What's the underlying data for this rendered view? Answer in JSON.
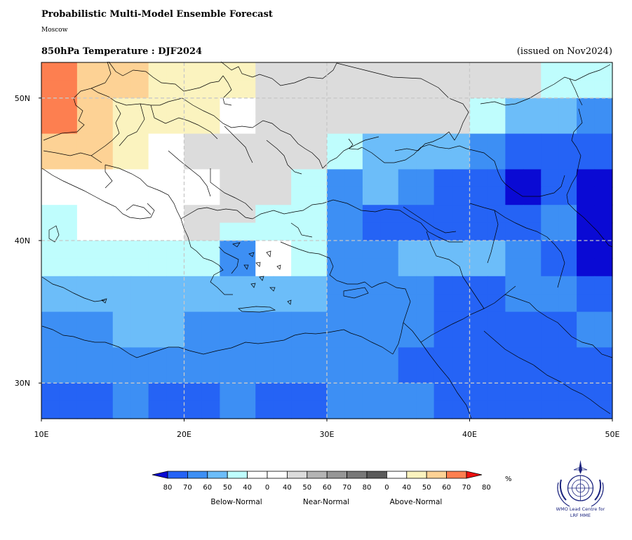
{
  "header": {
    "title": "Probabilistic Multi-Model Ensemble Forecast",
    "subtitle": "Moscow",
    "variable_label": "850hPa Temperature : DJF2024",
    "issued_label": "(issued on Nov2024)"
  },
  "map": {
    "lon_range": [
      10,
      50
    ],
    "lat_range": [
      27.5,
      52.5
    ],
    "cell_size_deg": 2.5,
    "x_ticks": [
      "10E",
      "20E",
      "30E",
      "40E",
      "50E"
    ],
    "y_ticks": [
      "30N",
      "40N",
      "50N"
    ],
    "gridlines": "dashed",
    "category_colors": {
      "B80": "#0a0ad4",
      "B70": "#2563f5",
      "B60": "#3d8ff4",
      "B50": "#6cbdf9",
      "B40": "#bffdfd",
      "W": "#ffffff",
      "N40": "#dcdcdc",
      "A40": "#fbf3bf",
      "A50": "#fdd295",
      "A60": "#fd7f50"
    },
    "grid_rows_north_to_south": [
      [
        "A60",
        "A60",
        "A50",
        "A50",
        "A50",
        "A50",
        "A40",
        "A40",
        "A40",
        "A40",
        "A40",
        "A40",
        "N40",
        "N40",
        "N40",
        "N40",
        "N40",
        "N40",
        "N40",
        "N40",
        "N40",
        "N40",
        "N40",
        "N40",
        "N40",
        "N40",
        "N40",
        "N40",
        "B40",
        "B40",
        "B40",
        "B40"
      ],
      [
        "A60",
        "A60",
        "A50",
        "A50",
        "A50",
        "A50",
        "A40",
        "A40",
        "A40",
        "A40",
        "A40",
        "A40",
        "N40",
        "N40",
        "N40",
        "N40",
        "N40",
        "N40",
        "N40",
        "N40",
        "N40",
        "N40",
        "N40",
        "N40",
        "N40",
        "N40",
        "N40",
        "N40",
        "B40",
        "B40",
        "B40",
        "B40"
      ],
      [
        "A60",
        "A60",
        "A50",
        "A50",
        "A40",
        "A40",
        "A40",
        "A40",
        "A40",
        "A40",
        "W",
        "W",
        "N40",
        "N40",
        "N40",
        "N40",
        "N40",
        "N40",
        "N40",
        "N40",
        "N40",
        "N40",
        "N40",
        "N40",
        "B40",
        "B40",
        "B50",
        "B50",
        "B50",
        "B50",
        "B60",
        "B60"
      ],
      [
        "A60",
        "A60",
        "A50",
        "A50",
        "A40",
        "A40",
        "A40",
        "A40",
        "A40",
        "A40",
        "W",
        "W",
        "N40",
        "N40",
        "N40",
        "N40",
        "N40",
        "N40",
        "N40",
        "N40",
        "N40",
        "N40",
        "N40",
        "N40",
        "B40",
        "B40",
        "B50",
        "B50",
        "B50",
        "B50",
        "B60",
        "B60"
      ],
      [
        "A50",
        "A50",
        "A50",
        "A50",
        "A40",
        "A40",
        "W",
        "W",
        "N40",
        "N40",
        "N40",
        "N40",
        "N40",
        "N40",
        "N40",
        "N40",
        "B40",
        "B40",
        "B50",
        "B50",
        "B50",
        "B50",
        "B50",
        "B50",
        "B60",
        "B60",
        "B70",
        "B70",
        "B70",
        "B70",
        "B70",
        "B70"
      ],
      [
        "A50",
        "A50",
        "A50",
        "A50",
        "A40",
        "A40",
        "W",
        "W",
        "N40",
        "N40",
        "N40",
        "N40",
        "N40",
        "N40",
        "N40",
        "N40",
        "B40",
        "B40",
        "B50",
        "B50",
        "B50",
        "B50",
        "B50",
        "B50",
        "B60",
        "B60",
        "B70",
        "B70",
        "B70",
        "B70",
        "B70",
        "B70"
      ],
      [
        "W",
        "W",
        "W",
        "W",
        "W",
        "W",
        "W",
        "W",
        "W",
        "W",
        "N40",
        "N40",
        "N40",
        "N40",
        "B40",
        "B40",
        "B60",
        "B60",
        "B50",
        "B50",
        "B60",
        "B60",
        "B70",
        "B70",
        "B70",
        "B70",
        "B80",
        "B80",
        "B70",
        "B70",
        "B80",
        "B80"
      ],
      [
        "W",
        "W",
        "W",
        "W",
        "W",
        "W",
        "W",
        "W",
        "W",
        "W",
        "N40",
        "N40",
        "N40",
        "N40",
        "B40",
        "B40",
        "B60",
        "B60",
        "B50",
        "B50",
        "B60",
        "B60",
        "B70",
        "B70",
        "B70",
        "B70",
        "B80",
        "B80",
        "B70",
        "B70",
        "B80",
        "B80"
      ],
      [
        "B40",
        "B40",
        "W",
        "W",
        "W",
        "W",
        "W",
        "W",
        "N40",
        "N40",
        "N40",
        "N40",
        "B40",
        "B40",
        "B40",
        "B40",
        "B60",
        "B60",
        "B70",
        "B70",
        "B70",
        "B70",
        "B70",
        "B70",
        "B70",
        "B70",
        "B70",
        "B70",
        "B60",
        "B60",
        "B80",
        "B80"
      ],
      [
        "B40",
        "B40",
        "W",
        "W",
        "W",
        "W",
        "W",
        "W",
        "N40",
        "N40",
        "B40",
        "B40",
        "B40",
        "B40",
        "B40",
        "B40",
        "B60",
        "B60",
        "B70",
        "B70",
        "B70",
        "B70",
        "B70",
        "B70",
        "B70",
        "B70",
        "B70",
        "B70",
        "B60",
        "B60",
        "B80",
        "B80"
      ],
      [
        "B40",
        "B40",
        "B40",
        "B40",
        "B40",
        "B40",
        "B40",
        "B40",
        "B40",
        "B40",
        "B60",
        "B60",
        "W",
        "W",
        "B40",
        "B40",
        "B60",
        "B60",
        "B60",
        "B60",
        "B50",
        "B50",
        "B50",
        "B50",
        "B50",
        "B50",
        "B60",
        "B60",
        "B70",
        "B70",
        "B80",
        "B80"
      ],
      [
        "B40",
        "B40",
        "B40",
        "B40",
        "B40",
        "B40",
        "B40",
        "B40",
        "B40",
        "B40",
        "B60",
        "B60",
        "W",
        "W",
        "B40",
        "B40",
        "B60",
        "B60",
        "B60",
        "B60",
        "B50",
        "B50",
        "B50",
        "B50",
        "B50",
        "B50",
        "B60",
        "B60",
        "B70",
        "B70",
        "B80",
        "B80"
      ],
      [
        "B50",
        "B50",
        "B50",
        "B50",
        "B50",
        "B50",
        "B50",
        "B50",
        "B50",
        "B50",
        "B50",
        "B50",
        "B50",
        "B50",
        "B50",
        "B50",
        "B60",
        "B60",
        "B60",
        "B60",
        "B60",
        "B60",
        "B70",
        "B70",
        "B70",
        "B70",
        "B60",
        "B60",
        "B60",
        "B60",
        "B70",
        "B70"
      ],
      [
        "B50",
        "B50",
        "B50",
        "B50",
        "B50",
        "B50",
        "B50",
        "B50",
        "B50",
        "B50",
        "B50",
        "B50",
        "B50",
        "B50",
        "B50",
        "B50",
        "B60",
        "B60",
        "B60",
        "B60",
        "B60",
        "B60",
        "B70",
        "B70",
        "B70",
        "B70",
        "B60",
        "B60",
        "B60",
        "B60",
        "B70",
        "B70"
      ],
      [
        "B60",
        "B60",
        "B60",
        "B60",
        "B50",
        "B50",
        "B50",
        "B50",
        "B60",
        "B60",
        "B60",
        "B60",
        "B60",
        "B60",
        "B60",
        "B60",
        "B60",
        "B60",
        "B60",
        "B60",
        "B60",
        "B60",
        "B70",
        "B70",
        "B70",
        "B70",
        "B70",
        "B70",
        "B70",
        "B70",
        "B60",
        "B60"
      ],
      [
        "B60",
        "B60",
        "B60",
        "B60",
        "B50",
        "B50",
        "B50",
        "B50",
        "B60",
        "B60",
        "B60",
        "B60",
        "B60",
        "B60",
        "B60",
        "B60",
        "B60",
        "B60",
        "B60",
        "B60",
        "B60",
        "B60",
        "B70",
        "B70",
        "B70",
        "B70",
        "B70",
        "B70",
        "B70",
        "B70",
        "B60",
        "B60"
      ],
      [
        "B60",
        "B60",
        "B60",
        "B60",
        "B60",
        "B60",
        "B60",
        "B60",
        "B60",
        "B60",
        "B60",
        "B60",
        "B60",
        "B60",
        "B60",
        "B60",
        "B60",
        "B60",
        "B60",
        "B60",
        "B70",
        "B70",
        "B70",
        "B70",
        "B70",
        "B70",
        "B70",
        "B70",
        "B70",
        "B70",
        "B70",
        "B70"
      ],
      [
        "B60",
        "B60",
        "B60",
        "B60",
        "B60",
        "B60",
        "B60",
        "B60",
        "B60",
        "B60",
        "B60",
        "B60",
        "B60",
        "B60",
        "B60",
        "B60",
        "B60",
        "B60",
        "B60",
        "B60",
        "B70",
        "B70",
        "B70",
        "B70",
        "B70",
        "B70",
        "B70",
        "B70",
        "B70",
        "B70",
        "B70",
        "B70"
      ],
      [
        "B70",
        "B70",
        "B70",
        "B70",
        "B60",
        "B60",
        "B70",
        "B70",
        "B70",
        "B70",
        "B60",
        "B60",
        "B70",
        "B70",
        "B70",
        "B70",
        "B60",
        "B60",
        "B60",
        "B60",
        "B60",
        "B60",
        "B70",
        "B70",
        "B70",
        "B70",
        "B70",
        "B70",
        "B70",
        "B70",
        "B70",
        "B70"
      ],
      [
        "B70",
        "B70",
        "B70",
        "B70",
        "B60",
        "B60",
        "B70",
        "B70",
        "B70",
        "B70",
        "B60",
        "B60",
        "B70",
        "B70",
        "B70",
        "B70",
        "B60",
        "B60",
        "B60",
        "B60",
        "B60",
        "B60",
        "B70",
        "B70",
        "B70",
        "B70",
        "B70",
        "B70",
        "B70",
        "B70",
        "B70",
        "B70"
      ]
    ]
  },
  "legend": {
    "unit": "%",
    "colors": [
      "#0a0ad4",
      "#2563f5",
      "#3d8ff4",
      "#6cbdf9",
      "#bffdfd",
      "#ffffff",
      "#ffffff",
      "#dcdcdc",
      "#b4b4b4",
      "#969696",
      "#787878",
      "#5a5a5a",
      "#ffffff",
      "#fbf3bf",
      "#fdd295",
      "#fd7f50",
      "#ee0f0f"
    ],
    "labels": [
      "80",
      "70",
      "60",
      "50",
      "40",
      "0",
      "40",
      "50",
      "60",
      "70",
      "80",
      "0",
      "40",
      "50",
      "60",
      "70",
      "80"
    ],
    "groups": [
      "Below-Normal",
      "Near-Normal",
      "Above-Normal"
    ]
  },
  "logo": {
    "line1": "WMO Lead Centre for",
    "line2": "LRF MME"
  }
}
